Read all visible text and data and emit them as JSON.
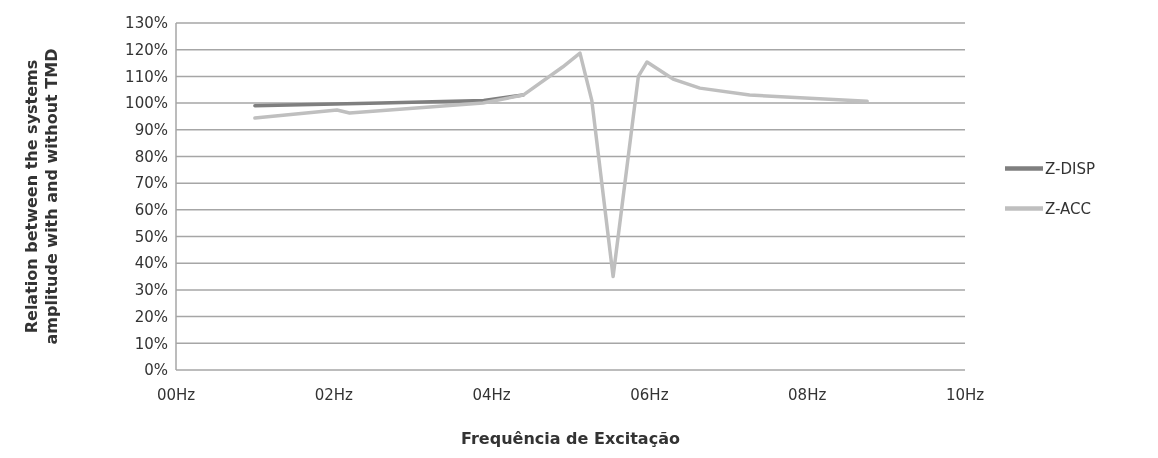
{
  "chart_data": {
    "type": "line",
    "xlabel": "Frequência de Excitação",
    "ylabel": "Relation between the systems amplitude with and without TMD",
    "xlim": [
      0,
      10
    ],
    "xticks": [
      {
        "value": 0,
        "label": "00Hz"
      },
      {
        "value": 2,
        "label": "02Hz"
      },
      {
        "value": 4,
        "label": "04Hz"
      },
      {
        "value": 6,
        "label": "06Hz"
      },
      {
        "value": 8,
        "label": "08Hz"
      },
      {
        "value": 10,
        "label": "10Hz"
      }
    ],
    "ylim": [
      0,
      130
    ],
    "yticks": [
      {
        "value": 0,
        "label": "0%"
      },
      {
        "value": 10,
        "label": "10%"
      },
      {
        "value": 20,
        "label": "20%"
      },
      {
        "value": 30,
        "label": "30%"
      },
      {
        "value": 40,
        "label": "40%"
      },
      {
        "value": 50,
        "label": "50%"
      },
      {
        "value": 60,
        "label": "60%"
      },
      {
        "value": 70,
        "label": "70%"
      },
      {
        "value": 80,
        "label": "80%"
      },
      {
        "value": 90,
        "label": "90%"
      },
      {
        "value": 100,
        "label": "100%"
      },
      {
        "value": 110,
        "label": "110%"
      },
      {
        "value": 120,
        "label": "120%"
      },
      {
        "value": 130,
        "label": "130%"
      }
    ],
    "grid": "y",
    "legend": "right",
    "marker": "none",
    "line_style": "solid",
    "series": [
      {
        "name": "Z-DISP",
        "color": "#7f7f7f",
        "x": [
          1,
          2.6,
          3.9,
          4.4
        ],
        "values": [
          99,
          100,
          101,
          103
        ]
      },
      {
        "name": "Z-ACC",
        "color": "#bfbfbf",
        "x": [
          1,
          2.04,
          2.2,
          3.89,
          4.4,
          4.9,
          5.12,
          5.27,
          5.54,
          5.86,
          5.97,
          6.3,
          6.64,
          7.27,
          8.76
        ],
        "values": [
          94.4,
          97.4,
          96.3,
          100,
          103,
          113.5,
          118.7,
          101,
          35,
          110,
          115.4,
          109,
          105.6,
          103,
          100.7
        ]
      }
    ]
  }
}
